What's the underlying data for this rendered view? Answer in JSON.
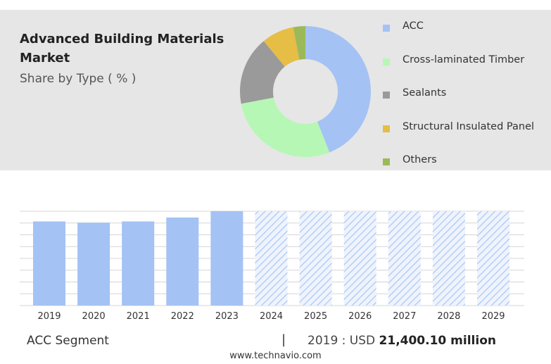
{
  "header": {
    "title": "Advanced Building Materials Market",
    "subtitle": "Share by Type ( % )"
  },
  "footer": {
    "segment": "ACC Segment",
    "separator": "|",
    "year_prefix": "2019 : USD ",
    "value": "21,400.10 million",
    "site": "www.technavio.com"
  },
  "chart_data": [
    {
      "type": "pie",
      "categories": [
        "ACC",
        "Cross-laminated Timber",
        "Sealants",
        "Structural Insulated Panel",
        "Others"
      ],
      "values": [
        44,
        28,
        17,
        8,
        3
      ],
      "colors": [
        "#a4c2f4",
        "#b6f7b6",
        "#9a9a9a",
        "#e6bd45",
        "#9cb95a"
      ],
      "legend": "right"
    },
    {
      "type": "bar",
      "categories": [
        "2019",
        "2020",
        "2021",
        "2022",
        "2023",
        "2024",
        "2025",
        "2026",
        "2027",
        "2028",
        "2029"
      ],
      "values": [
        21400.1,
        21100,
        21400,
        22400,
        24000,
        24000,
        24000,
        24000,
        24000,
        24000,
        24000
      ],
      "forecast_from": "2024",
      "color": "#a4c2f4",
      "grid": true,
      "ylim": [
        0,
        24000
      ]
    }
  ]
}
